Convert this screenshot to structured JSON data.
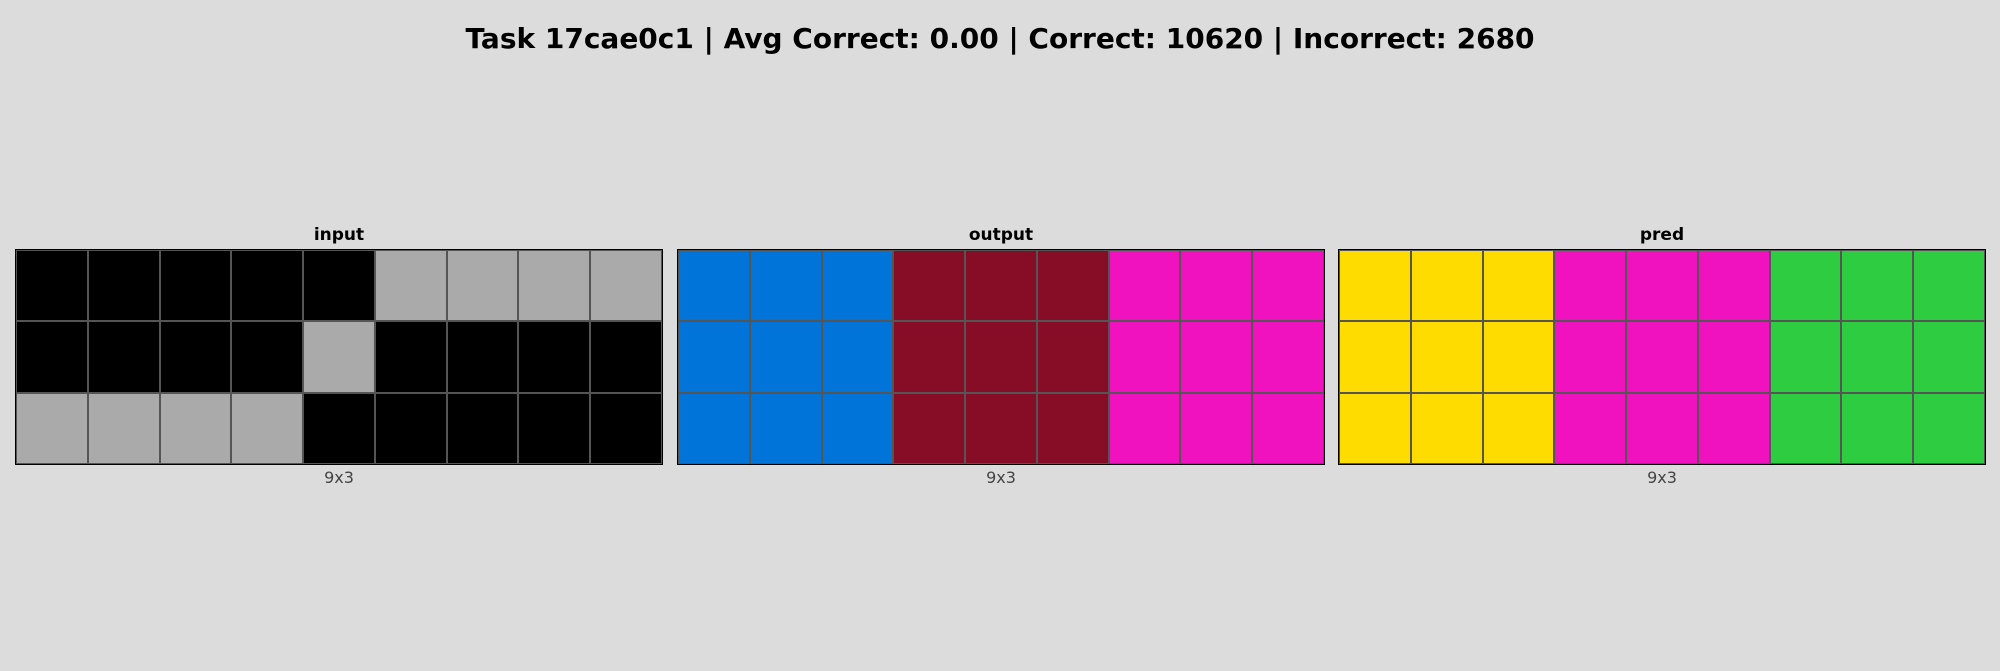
{
  "title": "Task 17cae0c1 | Avg Correct: 0.00 | Correct: 10620 | Incorrect: 2680",
  "palette": {
    "0": "#000000",
    "1": "#0074d9",
    "3": "#2ecc40",
    "4": "#ffdc00",
    "5": "#aaaaaa",
    "6": "#f012be",
    "9": "#870c25"
  },
  "panels": [
    {
      "label": "input",
      "dims": "9x3",
      "grid": [
        [
          0,
          0,
          0,
          0,
          0,
          5,
          5,
          5,
          5
        ],
        [
          0,
          0,
          0,
          0,
          5,
          0,
          0,
          0,
          0
        ],
        [
          5,
          5,
          5,
          5,
          0,
          0,
          0,
          0,
          0
        ]
      ]
    },
    {
      "label": "output",
      "dims": "9x3",
      "grid": [
        [
          1,
          1,
          1,
          9,
          9,
          9,
          6,
          6,
          6
        ],
        [
          1,
          1,
          1,
          9,
          9,
          9,
          6,
          6,
          6
        ],
        [
          1,
          1,
          1,
          9,
          9,
          9,
          6,
          6,
          6
        ]
      ]
    },
    {
      "label": "pred",
      "dims": "9x3",
      "grid": [
        [
          4,
          4,
          4,
          6,
          6,
          6,
          3,
          3,
          3
        ],
        [
          4,
          4,
          4,
          6,
          6,
          6,
          3,
          3,
          3
        ],
        [
          4,
          4,
          4,
          6,
          6,
          6,
          3,
          3,
          3
        ]
      ]
    }
  ]
}
